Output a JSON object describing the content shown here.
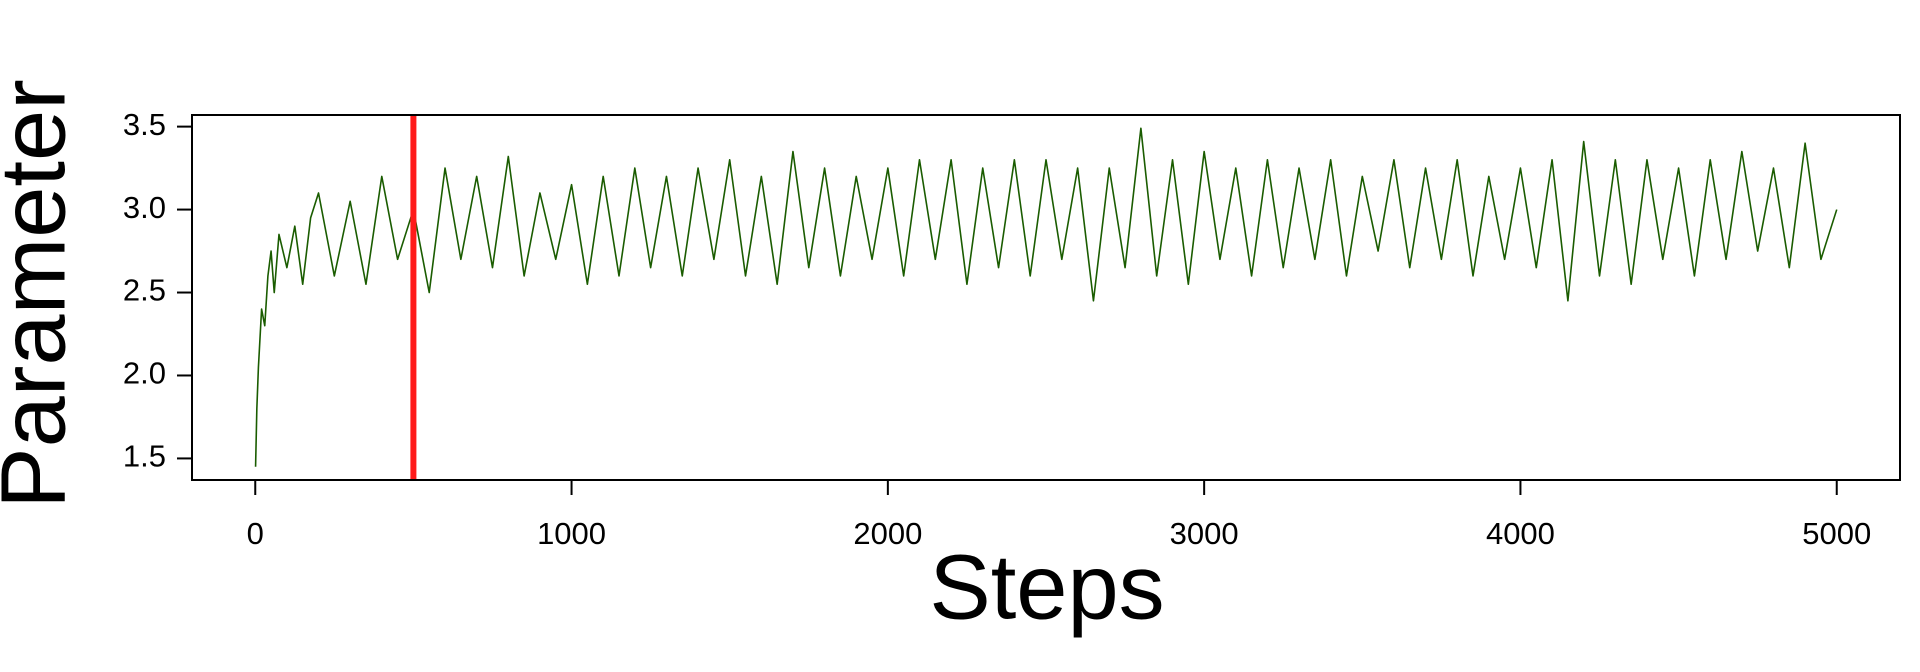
{
  "chart_data": {
    "type": "line",
    "xlabel": "Steps",
    "ylabel": "Parameter",
    "x": [
      1,
      5,
      10,
      20,
      30,
      40,
      50,
      60,
      75,
      100,
      125,
      150,
      175,
      200,
      250,
      300,
      350,
      400,
      450,
      500,
      550,
      600,
      650,
      700,
      750,
      800,
      850,
      900,
      950,
      1000,
      1050,
      1100,
      1150,
      1200,
      1250,
      1300,
      1350,
      1400,
      1450,
      1500,
      1550,
      1600,
      1650,
      1700,
      1750,
      1800,
      1850,
      1900,
      1950,
      2000,
      2050,
      2100,
      2150,
      2200,
      2250,
      2300,
      2350,
      2400,
      2450,
      2500,
      2550,
      2600,
      2650,
      2700,
      2750,
      2800,
      2850,
      2900,
      2950,
      3000,
      3050,
      3100,
      3150,
      3200,
      3250,
      3300,
      3350,
      3400,
      3450,
      3500,
      3550,
      3600,
      3650,
      3700,
      3750,
      3800,
      3850,
      3900,
      3950,
      4000,
      4050,
      4100,
      4150,
      4200,
      4250,
      4300,
      4350,
      4400,
      4450,
      4500,
      4550,
      4600,
      4650,
      4700,
      4750,
      4800,
      4850,
      4900,
      4950,
      5000
    ],
    "values": [
      1.45,
      1.8,
      2.05,
      2.4,
      2.3,
      2.6,
      2.75,
      2.5,
      2.85,
      2.65,
      2.9,
      2.55,
      2.95,
      3.1,
      2.6,
      3.05,
      2.55,
      3.2,
      2.7,
      3.0,
      2.5,
      3.25,
      2.7,
      3.2,
      2.65,
      3.32,
      2.6,
      3.1,
      2.7,
      3.15,
      2.55,
      3.2,
      2.6,
      3.25,
      2.65,
      3.2,
      2.6,
      3.25,
      2.7,
      3.3,
      2.6,
      3.2,
      2.55,
      3.35,
      2.65,
      3.25,
      2.6,
      3.2,
      2.7,
      3.25,
      2.6,
      3.3,
      2.7,
      3.3,
      2.55,
      3.25,
      2.65,
      3.3,
      2.6,
      3.3,
      2.7,
      3.25,
      2.45,
      3.25,
      2.65,
      3.49,
      2.6,
      3.3,
      2.55,
      3.35,
      2.7,
      3.25,
      2.6,
      3.3,
      2.65,
      3.25,
      2.7,
      3.3,
      2.6,
      3.2,
      2.75,
      3.3,
      2.65,
      3.25,
      2.7,
      3.3,
      2.6,
      3.2,
      2.7,
      3.25,
      2.65,
      3.3,
      2.45,
      3.41,
      2.6,
      3.3,
      2.55,
      3.3,
      2.7,
      3.25,
      2.6,
      3.3,
      2.7,
      3.35,
      2.75,
      3.25,
      2.65,
      3.4,
      2.7,
      3.0
    ],
    "color": "#1a5c00",
    "vlines": [
      {
        "x": 500,
        "color": "#ff1a1a"
      }
    ],
    "xlim": [
      -200,
      5200
    ],
    "xticks": [
      0,
      1000,
      2000,
      3000,
      4000,
      5000
    ],
    "ylim": [
      1.37,
      3.57
    ],
    "yticks": [
      1.5,
      {
        "value": 2,
        "label": "2.0"
      },
      2.5,
      {
        "value": 3,
        "label": "3.0"
      },
      3.5
    ]
  }
}
